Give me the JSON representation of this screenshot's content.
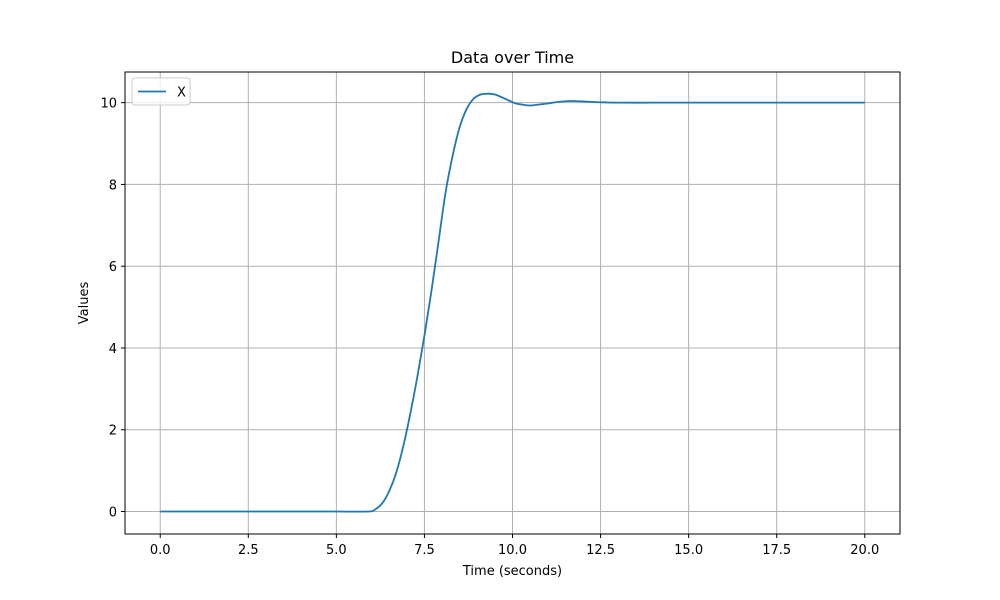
{
  "chart_data": {
    "type": "line",
    "title": "Data over Time",
    "xlabel": "Time (seconds)",
    "ylabel": "Values",
    "xlim": [
      -1.0,
      21.0
    ],
    "ylim": [
      -0.55,
      10.75
    ],
    "xticks": [
      0.0,
      2.5,
      5.0,
      7.5,
      10.0,
      12.5,
      15.0,
      17.5,
      20.0
    ],
    "xtick_labels": [
      "0.0",
      "2.5",
      "5.0",
      "7.5",
      "10.0",
      "12.5",
      "15.0",
      "17.5",
      "20.0"
    ],
    "yticks": [
      0,
      2,
      4,
      6,
      8,
      10
    ],
    "ytick_labels": [
      "0",
      "2",
      "4",
      "6",
      "8",
      "10"
    ],
    "grid": true,
    "legend_position": "top-left",
    "series": [
      {
        "name": "X",
        "color": "#1f77b4",
        "x": [
          0.0,
          1.0,
          2.0,
          3.0,
          4.0,
          5.0,
          5.9,
          6.1,
          6.3,
          6.5,
          6.7,
          6.9,
          7.1,
          7.3,
          7.5,
          7.7,
          7.9,
          8.1,
          8.3,
          8.5,
          8.7,
          8.9,
          9.1,
          9.3,
          9.5,
          9.7,
          9.9,
          10.1,
          10.3,
          10.5,
          10.7,
          11.0,
          11.3,
          11.7,
          12.0,
          12.5,
          13.0,
          14.0,
          15.0,
          16.0,
          17.0,
          18.0,
          19.0,
          20.0
        ],
        "y": [
          0.0,
          0.0,
          0.0,
          0.0,
          0.0,
          0.0,
          0.0,
          0.05,
          0.2,
          0.5,
          0.95,
          1.6,
          2.4,
          3.3,
          4.3,
          5.4,
          6.6,
          7.8,
          8.7,
          9.4,
          9.85,
          10.1,
          10.2,
          10.22,
          10.2,
          10.13,
          10.05,
          9.98,
          9.95,
          9.93,
          9.95,
          9.98,
          10.02,
          10.04,
          10.03,
          10.01,
          10.0,
          10.0,
          10.0,
          10.0,
          10.0,
          10.0,
          10.0,
          10.0
        ]
      }
    ]
  }
}
